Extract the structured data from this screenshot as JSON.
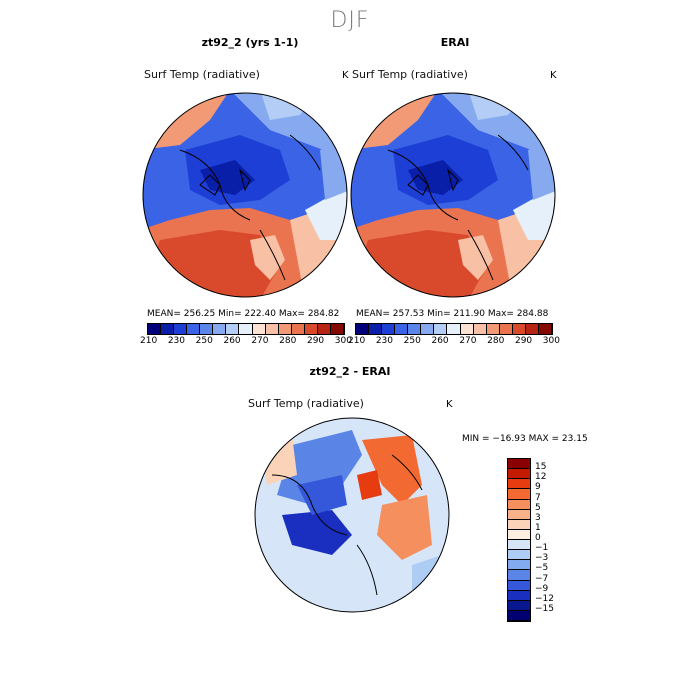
{
  "figure": {
    "title": "DJF"
  },
  "panels": {
    "model": {
      "title": "zt92_2 (yrs 1-1)",
      "var_label": "Surf Temp (radiative)",
      "units": "K",
      "stats": "MEAN= 256.25   Min= 222.40   Max= 284.82"
    },
    "obs": {
      "title": "ERAI",
      "var_label": "Surf Temp (radiative)",
      "units": "K",
      "stats": "MEAN= 257.53   Min= 211.90   Max= 284.88"
    },
    "diff": {
      "title": "zt92_2 - ERAI",
      "var_label": "Surf Temp (radiative)",
      "units": "K",
      "stats": "MIN = −16.93 MAX =  23.15"
    }
  },
  "abs_colorbar": {
    "ticks": [
      "210",
      "230",
      "250",
      "260",
      "270",
      "280",
      "290",
      "300"
    ],
    "colors": [
      "#00007a",
      "#0a1fa8",
      "#1e3fd6",
      "#3a63e6",
      "#5b85ea",
      "#86a9f0",
      "#b4cdf6",
      "#e6f0fb",
      "#fbe2d3",
      "#f8c0a4",
      "#f29a76",
      "#ea7450",
      "#d94a2c",
      "#b82414",
      "#860a04"
    ]
  },
  "diff_colorbar": {
    "labels": [
      "15",
      "12",
      "9",
      "7",
      "5",
      "3",
      "1",
      "0",
      "−1",
      "−3",
      "−5",
      "−7",
      "−9",
      "−12",
      "−15"
    ],
    "colors": [
      "#8a0000",
      "#c41a00",
      "#e63c10",
      "#f26a32",
      "#f58f5e",
      "#f8b28a",
      "#fbd3b8",
      "#fdeee2",
      "#d6e6f8",
      "#aecdf4",
      "#82aaee",
      "#5a84e6",
      "#3558db",
      "#1a2fc0",
      "#0a1890",
      "#000070"
    ]
  }
}
